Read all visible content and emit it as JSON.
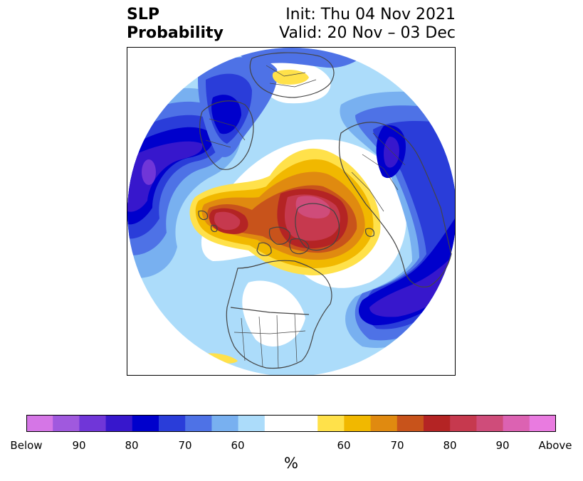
{
  "title": {
    "left_line1": "SLP",
    "left_line2": "Probability",
    "right_line1": "Init: Thu 04 Nov 2021",
    "right_line2": "Valid: 20 Nov – 03 Dec"
  },
  "colorbar": {
    "unit": "%",
    "below_colors": [
      "#d576e6",
      "#a059de",
      "#7036d8",
      "#3717cc",
      "#0000cc",
      "#2a3dd9",
      "#4e72e6",
      "#78b0f0",
      "#acdcfa"
    ],
    "neutral_colors": [
      "#ffffff",
      "#ffffff"
    ],
    "above_colors": [
      "#ffe14a",
      "#f1b800",
      "#e08a10",
      "#c8531b",
      "#b42424",
      "#c6394e",
      "#cf4c7a",
      "#dc62b2",
      "#e97be0"
    ],
    "tick_labels": [
      "Below",
      "90",
      "80",
      "70",
      "60",
      "60",
      "70",
      "80",
      "90",
      "Above"
    ]
  },
  "map": {
    "ocean_color": "#ffffff",
    "coastline_color": "#444444"
  }
}
